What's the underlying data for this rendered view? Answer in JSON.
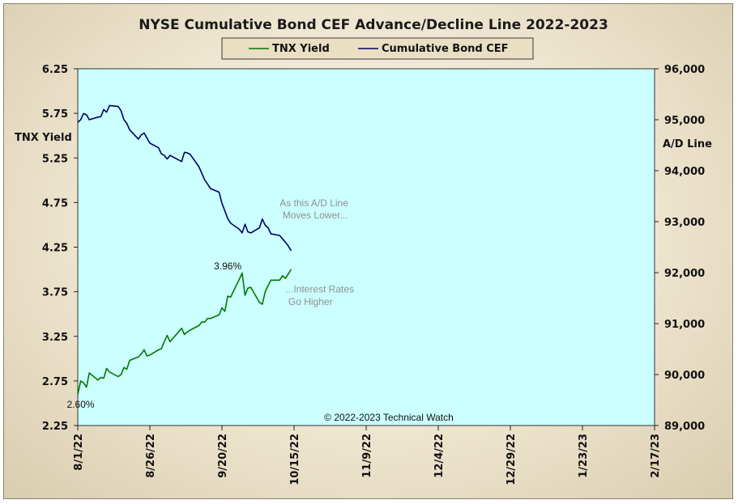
{
  "chart_data": {
    "type": "line",
    "title": "NYSE Cumulative  Bond CEF Advance/Decline  Line 2022-2023",
    "left_axis": {
      "label": "TNX Yield",
      "range": [
        2.25,
        6.25
      ],
      "ticks": [
        "6.25",
        "5.75",
        "5.25",
        "4.75",
        "4.25",
        "3.75",
        "3.25",
        "2.75",
        "2.25"
      ]
    },
    "right_axis": {
      "label": "A/D Line",
      "range": [
        89000,
        96000
      ],
      "ticks": [
        "96,000",
        "95,000",
        "94,000",
        "93,000",
        "92,000",
        "91,000",
        "90,000",
        "89,000"
      ]
    },
    "x_axis": {
      "ticks": [
        "8/1/22",
        "8/26/22",
        "9/20/22",
        "10/15/22",
        "11/9/22",
        "12/4/22",
        "12/29/22",
        "1/23/23",
        "2/17/23"
      ],
      "range": [
        "2022-08-01",
        "2023-02-17"
      ]
    },
    "legend": {
      "position": "top-center",
      "entries": [
        "TNX Yield",
        "Cumulative Bond CEF"
      ]
    },
    "grid": false,
    "plot_background": "#ccffff",
    "series": [
      {
        "name": "TNX Yield",
        "axis": "left",
        "color": "#007800",
        "points": [
          [
            "2022-08-01",
            2.6
          ],
          [
            "2022-08-02",
            2.75
          ],
          [
            "2022-08-03",
            2.73
          ],
          [
            "2022-08-04",
            2.68
          ],
          [
            "2022-08-05",
            2.84
          ],
          [
            "2022-08-08",
            2.76
          ],
          [
            "2022-08-09",
            2.79
          ],
          [
            "2022-08-10",
            2.78
          ],
          [
            "2022-08-11",
            2.89
          ],
          [
            "2022-08-12",
            2.85
          ],
          [
            "2022-08-15",
            2.8
          ],
          [
            "2022-08-16",
            2.82
          ],
          [
            "2022-08-17",
            2.9
          ],
          [
            "2022-08-18",
            2.88
          ],
          [
            "2022-08-19",
            2.98
          ],
          [
            "2022-08-22",
            3.02
          ],
          [
            "2022-08-23",
            3.05
          ],
          [
            "2022-08-24",
            3.1
          ],
          [
            "2022-08-25",
            3.03
          ],
          [
            "2022-08-26",
            3.04
          ],
          [
            "2022-08-29",
            3.1
          ],
          [
            "2022-08-30",
            3.11
          ],
          [
            "2022-08-31",
            3.19
          ],
          [
            "2022-09-01",
            3.26
          ],
          [
            "2022-09-02",
            3.19
          ],
          [
            "2022-09-06",
            3.34
          ],
          [
            "2022-09-07",
            3.27
          ],
          [
            "2022-09-08",
            3.3
          ],
          [
            "2022-09-09",
            3.32
          ],
          [
            "2022-09-12",
            3.37
          ],
          [
            "2022-09-13",
            3.41
          ],
          [
            "2022-09-14",
            3.41
          ],
          [
            "2022-09-15",
            3.45
          ],
          [
            "2022-09-16",
            3.45
          ],
          [
            "2022-09-19",
            3.49
          ],
          [
            "2022-09-20",
            3.57
          ],
          [
            "2022-09-21",
            3.53
          ],
          [
            "2022-09-22",
            3.7
          ],
          [
            "2022-09-23",
            3.69
          ],
          [
            "2022-09-26",
            3.89
          ],
          [
            "2022-09-27",
            3.96
          ],
          [
            "2022-09-28",
            3.71
          ],
          [
            "2022-09-29",
            3.79
          ],
          [
            "2022-09-30",
            3.8
          ],
          [
            "2022-10-03",
            3.63
          ],
          [
            "2022-10-04",
            3.61
          ],
          [
            "2022-10-05",
            3.75
          ],
          [
            "2022-10-06",
            3.82
          ],
          [
            "2022-10-07",
            3.88
          ],
          [
            "2022-10-10",
            3.88
          ],
          [
            "2022-10-11",
            3.93
          ],
          [
            "2022-10-12",
            3.9
          ],
          [
            "2022-10-13",
            3.95
          ],
          [
            "2022-10-14",
            4.0
          ]
        ]
      },
      {
        "name": "Cumulative Bond CEF",
        "axis": "right",
        "color": "#000066",
        "points": [
          [
            "2022-08-01",
            94950
          ],
          [
            "2022-08-02",
            95000
          ],
          [
            "2022-08-03",
            95120
          ],
          [
            "2022-08-04",
            95100
          ],
          [
            "2022-08-05",
            95000
          ],
          [
            "2022-08-08",
            95050
          ],
          [
            "2022-08-09",
            95060
          ],
          [
            "2022-08-10",
            95200
          ],
          [
            "2022-08-11",
            95150
          ],
          [
            "2022-08-12",
            95280
          ],
          [
            "2022-08-15",
            95260
          ],
          [
            "2022-08-16",
            95180
          ],
          [
            "2022-08-17",
            95000
          ],
          [
            "2022-08-18",
            94930
          ],
          [
            "2022-08-19",
            94800
          ],
          [
            "2022-08-22",
            94620
          ],
          [
            "2022-08-23",
            94700
          ],
          [
            "2022-08-24",
            94740
          ],
          [
            "2022-08-25",
            94640
          ],
          [
            "2022-08-26",
            94540
          ],
          [
            "2022-08-29",
            94450
          ],
          [
            "2022-08-30",
            94330
          ],
          [
            "2022-08-31",
            94300
          ],
          [
            "2022-09-01",
            94230
          ],
          [
            "2022-09-02",
            94300
          ],
          [
            "2022-09-06",
            94180
          ],
          [
            "2022-09-07",
            94360
          ],
          [
            "2022-09-08",
            94350
          ],
          [
            "2022-09-09",
            94320
          ],
          [
            "2022-09-12",
            94080
          ],
          [
            "2022-09-13",
            93950
          ],
          [
            "2022-09-14",
            93820
          ],
          [
            "2022-09-15",
            93740
          ],
          [
            "2022-09-16",
            93650
          ],
          [
            "2022-09-19",
            93580
          ],
          [
            "2022-09-20",
            93360
          ],
          [
            "2022-09-21",
            93210
          ],
          [
            "2022-09-22",
            93060
          ],
          [
            "2022-09-23",
            92970
          ],
          [
            "2022-09-26",
            92850
          ],
          [
            "2022-09-27",
            92780
          ],
          [
            "2022-09-28",
            92950
          ],
          [
            "2022-09-29",
            92800
          ],
          [
            "2022-09-30",
            92780
          ],
          [
            "2022-10-03",
            92880
          ],
          [
            "2022-10-04",
            93050
          ],
          [
            "2022-10-05",
            92930
          ],
          [
            "2022-10-06",
            92880
          ],
          [
            "2022-10-07",
            92760
          ],
          [
            "2022-10-10",
            92730
          ],
          [
            "2022-10-11",
            92660
          ],
          [
            "2022-10-12",
            92600
          ],
          [
            "2022-10-13",
            92520
          ],
          [
            "2022-10-14",
            92430
          ]
        ]
      }
    ],
    "annotations": [
      {
        "text": "As this A/D Line",
        "at": [
          "2022-10-10",
          93300
        ],
        "axis": "right"
      },
      {
        "text": "Moves  Lower...",
        "at": [
          "2022-10-11",
          93060
        ],
        "axis": "right"
      },
      {
        "text": "...Interest Rates",
        "at": [
          "2022-10-12",
          3.74
        ],
        "axis": "left"
      },
      {
        "text": "Go Higher",
        "at": [
          "2022-10-13",
          3.6
        ],
        "axis": "left"
      },
      {
        "text": "3.96%",
        "at": [
          "2022-09-22",
          4.0
        ],
        "axis": "left"
      },
      {
        "text": "2.60%",
        "at": [
          "2022-08-02",
          2.45
        ],
        "axis": "left"
      }
    ],
    "copyright": "© 2022-2023  Technical  Watch"
  }
}
